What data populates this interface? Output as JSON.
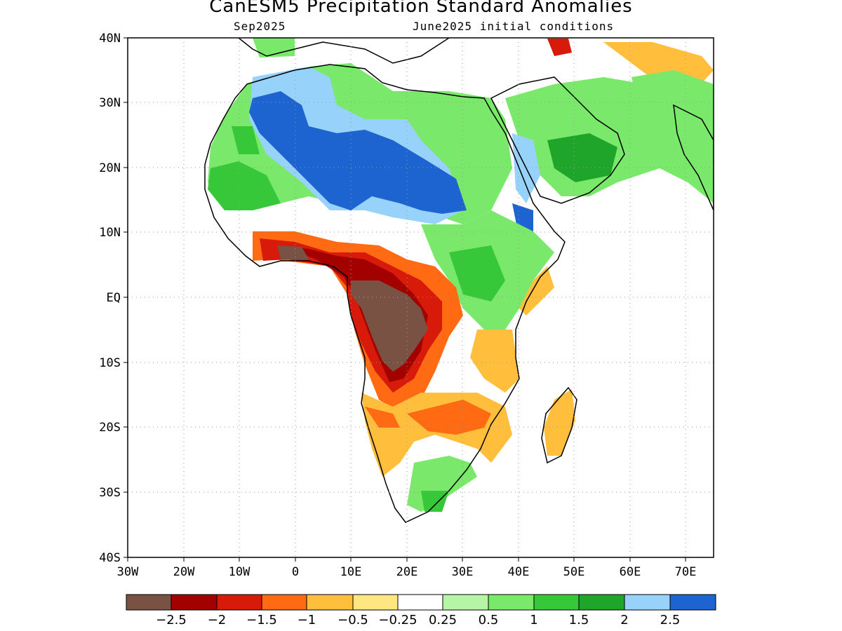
{
  "title": "CanESM5 Precipitation Standard Anomalies",
  "subtitle_left": "Sep2025",
  "subtitle_right": "June2025 initial conditions",
  "lat_labels": [
    "40N",
    "30N",
    "20N",
    "10N",
    "EQ",
    "10S",
    "20S",
    "30S",
    "40S"
  ],
  "lon_labels": [
    "30W",
    "20W",
    "10W",
    "0",
    "10E",
    "20E",
    "30E",
    "40E",
    "50E",
    "60E",
    "70E"
  ],
  "lon_range": [
    -30,
    75
  ],
  "lat_range": [
    -40,
    40
  ],
  "colorbar": {
    "colors": [
      "#7a5244",
      "#a30000",
      "#d71a0a",
      "#ff6a12",
      "#ffbe3c",
      "#ffe680",
      "#ffffff",
      "#b5f5a5",
      "#7ae86a",
      "#37c83a",
      "#1fa52a",
      "#96d2f9",
      "#1e64d0"
    ],
    "labels": [
      "−2.5",
      "−2",
      "−1.5",
      "−1",
      "−0.5",
      "−0.25",
      "0.25",
      "0.5",
      "1",
      "1.5",
      "2",
      "2.5"
    ]
  }
}
